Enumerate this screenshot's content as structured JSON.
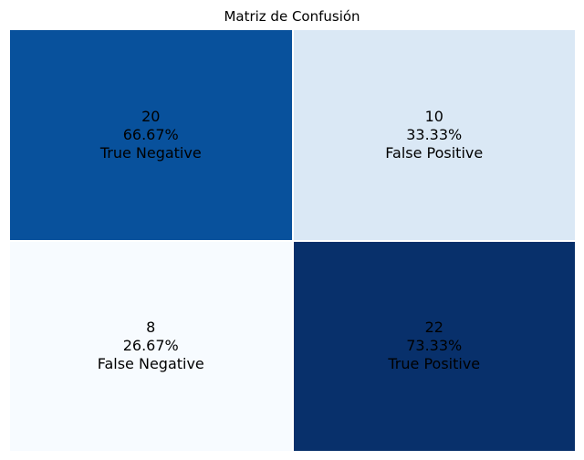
{
  "chart_data": {
    "type": "heatmap",
    "title": "Matriz de Confusión",
    "xlabel": "",
    "ylabel": "",
    "colormap": "Blues",
    "colorbar": false,
    "grid": false,
    "rows": 2,
    "cols": 2,
    "cells": [
      {
        "row": 0,
        "col": 0,
        "value": 20,
        "percent": "66.67%",
        "label": "True Negative",
        "color": "#08519c",
        "text_color": "#000000"
      },
      {
        "row": 0,
        "col": 1,
        "value": 10,
        "percent": "33.33%",
        "label": "False Positive",
        "color": "#dae8f5",
        "text_color": "#000000"
      },
      {
        "row": 1,
        "col": 0,
        "value": 8,
        "percent": "26.67%",
        "label": "False Negative",
        "color": "#f7fbff",
        "text_color": "#000000"
      },
      {
        "row": 1,
        "col": 1,
        "value": 22,
        "percent": "73.33%",
        "label": "True Positive",
        "color": "#08306b",
        "text_color": "#000000"
      }
    ]
  }
}
